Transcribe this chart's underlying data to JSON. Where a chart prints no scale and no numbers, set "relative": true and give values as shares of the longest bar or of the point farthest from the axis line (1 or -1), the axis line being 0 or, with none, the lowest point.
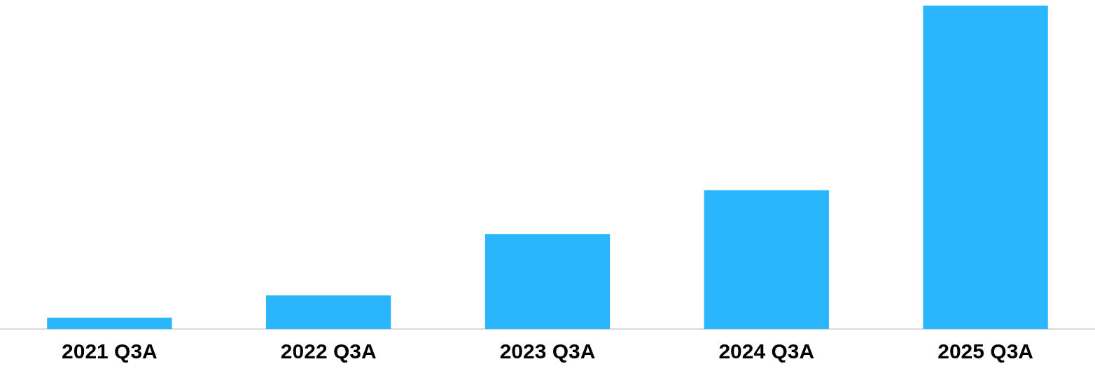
{
  "chart_data": {
    "type": "bar",
    "relative": true,
    "categories": [
      "2021 Q3A",
      "2022 Q3A",
      "2023 Q3A",
      "2024 Q3A",
      "2025 Q3A"
    ],
    "values": [
      0.035,
      0.104,
      0.294,
      0.429,
      1
    ],
    "color": "#29b6fd",
    "grid": false
  }
}
